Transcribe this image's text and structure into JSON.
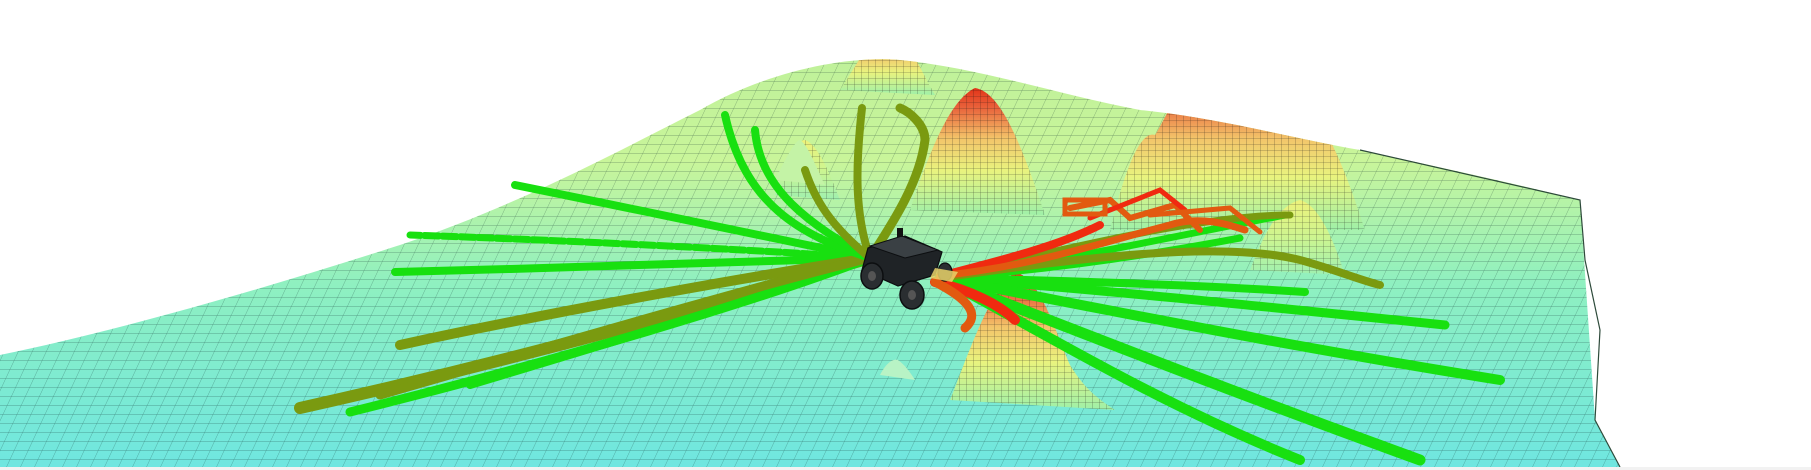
{
  "scene": {
    "background": "#ffffff",
    "terrain": {
      "colormap": [
        "#6fe6e0",
        "#8ff0c0",
        "#c9f59a",
        "#e9f37e",
        "#f3c56a",
        "#e9613a",
        "#e23418"
      ],
      "mesh_line_color": "#0b2a2a"
    },
    "paths": {
      "bright_green": "#18e010",
      "olive_green": "#7a9a10",
      "red": "#f02a10",
      "orange_red": "#e25a10"
    },
    "robot": {
      "body_color": "#1f2326",
      "icon": "rover-robot-icon"
    }
  }
}
